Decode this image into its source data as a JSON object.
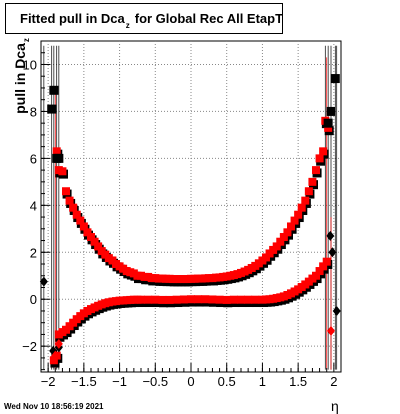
{
  "title": {
    "main": "Fitted pull in Dca",
    "sub": "z",
    "rest": "for Global Rec All EtapT"
  },
  "axes": {
    "ylabel_main": "pull in Dca",
    "ylabel_sub": "z",
    "xlabel": "η"
  },
  "footer": "Wed Nov 10 18:56:19 2021",
  "colors": {
    "red": "#ff0000",
    "black": "#000000",
    "grid": "#888888"
  },
  "chart_data": {
    "type": "scatter",
    "xlim": [
      -2.1,
      2.1
    ],
    "ylim": [
      -3.1,
      11.0
    ],
    "grid": true,
    "xticks": [
      -2,
      -1.5,
      -1,
      -0.5,
      0,
      0.5,
      1,
      1.5,
      2
    ],
    "xtick_labels": [
      "−2",
      "−1.5",
      "−1",
      "−0.5",
      "0",
      "0.5",
      "1",
      "1.5",
      "2"
    ],
    "yticks": [
      -2,
      0,
      2,
      4,
      6,
      8,
      10
    ],
    "ytick_labels": [
      "−2",
      "0",
      "2",
      "4",
      "6",
      "8",
      "10"
    ],
    "series": [
      {
        "marker": "square",
        "color": "black",
        "points": [
          [
            -1.95,
            8.1
          ],
          [
            -1.92,
            8.9
          ],
          [
            -1.88,
            6.0
          ],
          [
            -1.85,
            6.0
          ],
          [
            1.92,
            7.5
          ],
          [
            1.96,
            8.0
          ],
          [
            2.02,
            9.4
          ]
        ]
      },
      {
        "marker": "diamond",
        "color": "black",
        "points": [
          [
            -2.06,
            0.75
          ],
          [
            -1.93,
            -2.2
          ],
          [
            -1.85,
            -2.05
          ],
          [
            1.95,
            2.7
          ],
          [
            1.98,
            2.0
          ],
          [
            2.04,
            -0.5
          ]
        ]
      },
      {
        "marker": "diamond",
        "color": "red",
        "points": [
          [
            1.96,
            -1.35
          ],
          [
            -1.9,
            -2.4
          ],
          [
            -1.85,
            -1.9
          ]
        ]
      }
    ],
    "curves": [
      {
        "color": "red",
        "marker": "square",
        "error_band": "black",
        "x": [
          -1.88,
          -1.85,
          -1.8,
          -1.75,
          -1.7,
          -1.65,
          -1.6,
          -1.55,
          -1.5,
          -1.45,
          -1.4,
          -1.35,
          -1.3,
          -1.25,
          -1.2,
          -1.15,
          -1.1,
          -1.05,
          -1.0,
          -0.95,
          -0.9,
          -0.85,
          -0.8,
          -0.75,
          -0.7,
          -0.65,
          -0.6,
          -0.55,
          -0.5,
          -0.45,
          -0.4,
          -0.35,
          -0.3,
          -0.25,
          -0.2,
          -0.15,
          -0.1,
          -0.05,
          0.0,
          0.05,
          0.1,
          0.15,
          0.2,
          0.25,
          0.3,
          0.35,
          0.4,
          0.45,
          0.5,
          0.55,
          0.6,
          0.65,
          0.7,
          0.75,
          0.8,
          0.85,
          0.9,
          0.95,
          1.0,
          1.05,
          1.1,
          1.15,
          1.2,
          1.25,
          1.3,
          1.35,
          1.4,
          1.45,
          1.5,
          1.55,
          1.6,
          1.65,
          1.7,
          1.75,
          1.8,
          1.85,
          1.88,
          1.92
        ],
        "y": [
          6.3,
          5.5,
          5.45,
          4.6,
          4.2,
          3.9,
          3.6,
          3.35,
          3.1,
          2.85,
          2.65,
          2.45,
          2.25,
          2.05,
          1.9,
          1.75,
          1.65,
          1.5,
          1.4,
          1.3,
          1.2,
          1.15,
          1.1,
          1.0,
          1.0,
          0.95,
          0.95,
          0.9,
          0.9,
          0.88,
          0.88,
          0.87,
          0.87,
          0.86,
          0.86,
          0.86,
          0.86,
          0.86,
          0.87,
          0.87,
          0.88,
          0.88,
          0.89,
          0.9,
          0.9,
          0.92,
          0.93,
          0.95,
          0.97,
          1.0,
          1.03,
          1.07,
          1.12,
          1.18,
          1.25,
          1.33,
          1.42,
          1.53,
          1.65,
          1.78,
          1.95,
          2.1,
          2.25,
          2.45,
          2.65,
          2.85,
          3.1,
          3.35,
          3.6,
          3.9,
          4.2,
          4.6,
          5.0,
          5.5,
          6.0,
          6.3,
          7.6,
          7.3
        ]
      },
      {
        "color": "red",
        "marker": "square",
        "error_band": "black",
        "x": [
          -1.92,
          -1.88,
          -1.85,
          -1.8,
          -1.75,
          -1.7,
          -1.65,
          -1.6,
          -1.55,
          -1.5,
          -1.45,
          -1.4,
          -1.35,
          -1.3,
          -1.25,
          -1.2,
          -1.15,
          -1.1,
          -1.05,
          -1.0,
          -0.95,
          -0.9,
          -0.85,
          -0.8,
          -0.75,
          -0.7,
          -0.6,
          -0.5,
          -0.4,
          -0.3,
          -0.2,
          -0.1,
          0.0,
          0.1,
          0.2,
          0.3,
          0.4,
          0.5,
          0.6,
          0.7,
          0.8,
          0.9,
          1.0,
          1.05,
          1.1,
          1.15,
          1.2,
          1.25,
          1.3,
          1.35,
          1.4,
          1.45,
          1.5,
          1.55,
          1.6,
          1.65,
          1.7,
          1.75,
          1.8,
          1.85,
          1.9
        ],
        "y": [
          -2.6,
          -2.4,
          -1.5,
          -1.4,
          -1.3,
          -1.15,
          -1.0,
          -0.85,
          -0.72,
          -0.6,
          -0.5,
          -0.42,
          -0.35,
          -0.28,
          -0.22,
          -0.17,
          -0.13,
          -0.1,
          -0.08,
          -0.06,
          -0.05,
          -0.04,
          -0.03,
          -0.02,
          -0.02,
          -0.02,
          -0.02,
          -0.02,
          -0.03,
          -0.03,
          -0.02,
          -0.01,
          0.0,
          0.0,
          0.0,
          -0.01,
          -0.02,
          -0.03,
          -0.02,
          -0.02,
          -0.02,
          -0.02,
          -0.02,
          -0.01,
          0.0,
          0.02,
          0.05,
          0.08,
          0.12,
          0.18,
          0.25,
          0.33,
          0.42,
          0.52,
          0.63,
          0.75,
          0.88,
          1.0,
          1.2,
          1.4,
          1.6
        ]
      }
    ]
  }
}
